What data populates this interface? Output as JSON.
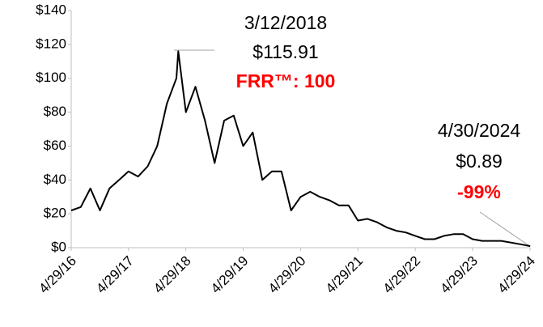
{
  "chart_data": {
    "type": "line",
    "x": [
      "4/29/16",
      "6/29/16",
      "8/29/16",
      "10/29/16",
      "12/29/16",
      "2/28/17",
      "4/29/17",
      "6/29/17",
      "8/29/17",
      "10/29/17",
      "12/29/17",
      "2/28/18",
      "3/12/18",
      "4/29/18",
      "6/29/18",
      "8/29/18",
      "10/29/18",
      "12/29/18",
      "2/28/19",
      "4/29/19",
      "6/29/19",
      "8/29/19",
      "10/29/19",
      "12/29/19",
      "2/28/20",
      "4/29/20",
      "6/29/20",
      "8/29/20",
      "10/29/20",
      "12/29/20",
      "2/28/21",
      "4/29/21",
      "6/29/21",
      "8/29/21",
      "10/29/21",
      "12/29/21",
      "2/28/22",
      "4/29/22",
      "6/29/22",
      "8/29/22",
      "10/29/22",
      "12/29/22",
      "2/28/23",
      "4/29/23",
      "6/29/23",
      "8/29/23",
      "10/29/23",
      "12/29/23",
      "2/29/24",
      "4/30/24"
    ],
    "series": [
      {
        "color": "#000000",
        "values": [
          22,
          24,
          35,
          22,
          35,
          40,
          45,
          42,
          48,
          60,
          85,
          100,
          115.91,
          80,
          95,
          75,
          50,
          75,
          78,
          60,
          68,
          40,
          45,
          45,
          22,
          30,
          33,
          30,
          28,
          25,
          25,
          16,
          17,
          15,
          12,
          10,
          9,
          7,
          5,
          5,
          7,
          8,
          8,
          5,
          4,
          4,
          4,
          3,
          2,
          0.89
        ]
      }
    ],
    "xlim": [
      "4/29/16",
      "4/29/24"
    ],
    "xticks": [
      "4/29/16",
      "4/29/17",
      "4/29/18",
      "4/29/19",
      "4/29/20",
      "4/29/21",
      "4/29/22",
      "4/29/23",
      "4/29/24"
    ],
    "ylim": [
      0,
      140
    ],
    "yticks": [
      {
        "value": 0,
        "label": "$0"
      },
      {
        "value": 20,
        "label": "$20"
      },
      {
        "value": 40,
        "label": "$40"
      },
      {
        "value": 60,
        "label": "$60"
      },
      {
        "value": 80,
        "label": "$80"
      },
      {
        "value": 100,
        "label": "$100"
      },
      {
        "value": 120,
        "label": "$120"
      },
      {
        "value": 140,
        "label": "$140"
      }
    ],
    "annotations": [
      "3/12/2018",
      "$115.91",
      "FRR™: 100",
      "4/30/2024",
      "$0.89",
      "-99%"
    ]
  }
}
